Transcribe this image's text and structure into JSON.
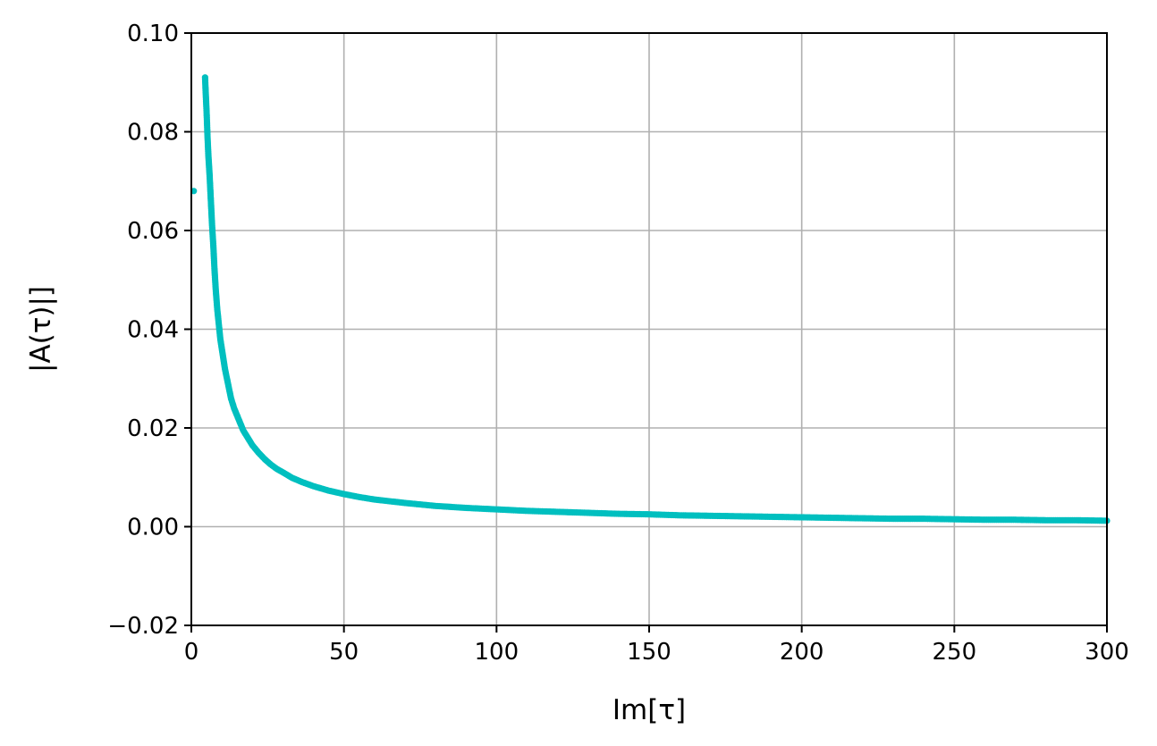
{
  "chart_data": {
    "type": "scatter",
    "title": "",
    "xlabel": "Im[τ]",
    "ylabel": "|A(τ)|]",
    "xlim": [
      0,
      300
    ],
    "ylim": [
      -0.02,
      0.1
    ],
    "x_ticks": [
      0,
      50,
      100,
      150,
      200,
      250,
      300
    ],
    "x_tick_labels": [
      "0",
      "50",
      "100",
      "150",
      "200",
      "250",
      "300"
    ],
    "y_ticks": [
      -0.02,
      0.0,
      0.02,
      0.04,
      0.06,
      0.08,
      0.1
    ],
    "y_tick_labels": [
      "−0.02",
      "0.00",
      "0.02",
      "0.04",
      "0.06",
      "0.08",
      "0.10"
    ],
    "grid": true,
    "legend": "none",
    "color": "#00bfbf",
    "series": [
      {
        "x": [
          0.8,
          4.5,
          4.7,
          5.0,
          5.3,
          5.6,
          6.0,
          6.4,
          6.8,
          7.2,
          7.6,
          8.0,
          8.5,
          9.0,
          9.5,
          10,
          11,
          12,
          13,
          14,
          15,
          16,
          17,
          18,
          20,
          22,
          24,
          26,
          28,
          30,
          33,
          36,
          40,
          45,
          50,
          55,
          60,
          70,
          80,
          90,
          100,
          110,
          120,
          130,
          140,
          150,
          160,
          170,
          180,
          190,
          200,
          210,
          220,
          230,
          240,
          250,
          260,
          270,
          280,
          290,
          300
        ],
        "y": [
          0.068,
          0.091,
          0.088,
          0.084,
          0.079,
          0.075,
          0.071,
          0.066,
          0.061,
          0.057,
          0.052,
          0.048,
          0.044,
          0.041,
          0.038,
          0.036,
          0.032,
          0.029,
          0.026,
          0.024,
          0.0225,
          0.021,
          0.0195,
          0.0185,
          0.0165,
          0.015,
          0.0137,
          0.0126,
          0.0117,
          0.011,
          0.0099,
          0.0091,
          0.0082,
          0.0073,
          0.0066,
          0.006,
          0.0055,
          0.0048,
          0.0042,
          0.0038,
          0.0035,
          0.0032,
          0.003,
          0.0028,
          0.0026,
          0.0025,
          0.0023,
          0.0022,
          0.0021,
          0.002,
          0.0019,
          0.0018,
          0.0017,
          0.0016,
          0.0016,
          0.0015,
          0.0014,
          0.0014,
          0.0013,
          0.0013,
          0.0012
        ]
      }
    ]
  }
}
